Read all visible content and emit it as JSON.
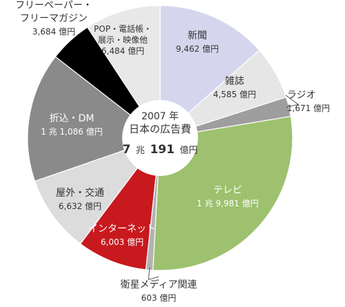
{
  "chart_data": {
    "type": "pie",
    "title": [
      "2007 年",
      "日本の広告費"
    ],
    "total": {
      "prefix": "7",
      "unit1": "兆",
      "main": "191",
      "unit2": "億円"
    },
    "slices": [
      {
        "name": "新聞",
        "value": 9462,
        "value_label": "9,462 億円",
        "color": "#d5d6ee",
        "text_color": "#333333"
      },
      {
        "name": "雑誌",
        "value": 4585,
        "value_label": "4,585 億円",
        "color": "#e6e6e6",
        "text_color": "#333333"
      },
      {
        "name": "ラジオ",
        "value": 1671,
        "value_label": "1,671 億円",
        "color": "#9e9e9e",
        "text_color": "#333333"
      },
      {
        "name": "テレビ",
        "value": 19981,
        "value_label": "1 兆 9,981 億円",
        "color": "#9dc16e",
        "text_color": "#ffffff"
      },
      {
        "name": "衛星メディア関連",
        "value": 603,
        "value_label": "603 億円",
        "color": "#b3b3b3",
        "text_color": "#333333"
      },
      {
        "name": "インターネット",
        "value": 6003,
        "value_label": "6,003 億円",
        "color": "#c8191f",
        "text_color": "#ffffff"
      },
      {
        "name": "屋外・交通",
        "value": 6632,
        "value_label": "6,632 億円",
        "color": "#dcdcdc",
        "text_color": "#333333"
      },
      {
        "name": "折込・DM",
        "value": 11086,
        "value_label": "1 兆 1,086 億円",
        "color": "#8a8a8a",
        "text_color": "#ffffff"
      },
      {
        "name": "フリーペーパー・フリーマガジン",
        "value": 3684,
        "value_label": "3,684 億円",
        "color": "#000000",
        "text_color": "#333333"
      },
      {
        "name": "POP・電話帳・展示・映像他",
        "value": 6484,
        "value_label": "6,484 億円",
        "color": "#e8e8e8",
        "text_color": "#333333"
      }
    ]
  }
}
